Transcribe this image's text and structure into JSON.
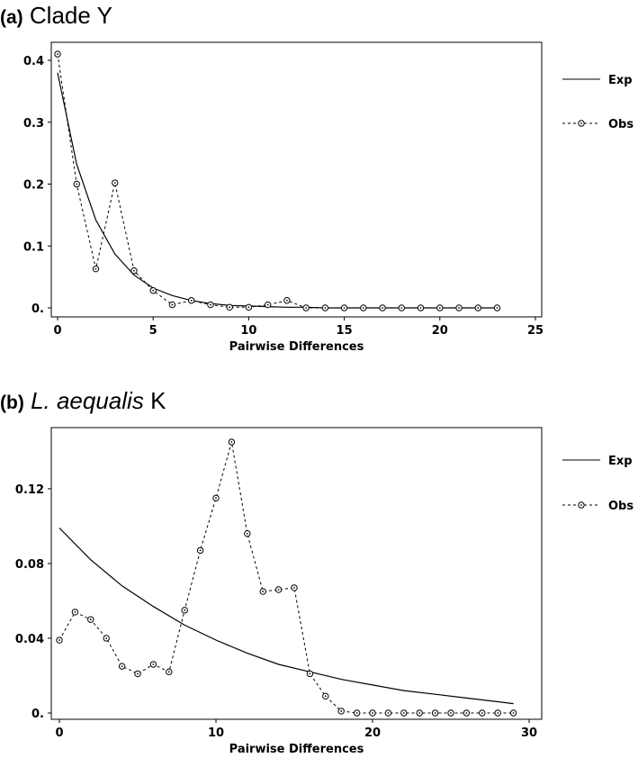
{
  "chart_data": [
    {
      "type": "line",
      "title_letter": "(a)",
      "title_name": "Clade Y",
      "xlabel": "Pairwise Differences",
      "ylabel": "",
      "xlim": [
        0,
        25
      ],
      "ylim": [
        0,
        0.4
      ],
      "xticks": [
        0,
        5,
        10,
        15,
        20,
        25
      ],
      "xtick_labels": [
        "0",
        "5",
        "10",
        "15",
        "20",
        "25"
      ],
      "yticks": [
        0,
        0.1,
        0.2,
        0.3,
        0.4
      ],
      "ytick_labels": [
        "0.",
        "0.1",
        "0.2",
        "0.3",
        "0.4"
      ],
      "legend_position": "right",
      "series": [
        {
          "name": "Exp",
          "style": "solid",
          "x": [
            0,
            1,
            2,
            3,
            4,
            5,
            6,
            7,
            8,
            9,
            10,
            11,
            12,
            13,
            14,
            15,
            16,
            17,
            18,
            19,
            20,
            21,
            22,
            23
          ],
          "y": [
            0.38,
            0.232,
            0.142,
            0.087,
            0.053,
            0.032,
            0.02,
            0.012,
            0.007,
            0.004,
            0.003,
            0.002,
            0.001,
            0.001,
            0,
            0,
            0,
            0,
            0,
            0,
            0,
            0,
            0,
            0
          ]
        },
        {
          "name": "Obs",
          "style": "dashed-circles",
          "x": [
            0,
            1,
            2,
            3,
            4,
            5,
            6,
            7,
            8,
            9,
            10,
            11,
            12,
            13,
            14,
            15,
            16,
            17,
            18,
            19,
            20,
            21,
            22,
            23
          ],
          "y": [
            0.41,
            0.2,
            0.063,
            0.202,
            0.06,
            0.028,
            0.005,
            0.012,
            0.005,
            0.001,
            0.001,
            0.005,
            0.012,
            0,
            0,
            0,
            0,
            0,
            0,
            0,
            0,
            0,
            0,
            0
          ]
        }
      ]
    },
    {
      "type": "line",
      "title_letter": "(b)",
      "title_name": "L. aequalis",
      "title_suffix": "K",
      "xlabel": "Pairwise Differences",
      "ylabel": "",
      "xlim": [
        0,
        30
      ],
      "ylim": [
        0,
        0.145
      ],
      "xticks": [
        0,
        10,
        20,
        30
      ],
      "xtick_labels": [
        "0",
        "10",
        "20",
        "30"
      ],
      "yticks": [
        0,
        0.04,
        0.08,
        0.12
      ],
      "ytick_labels": [
        "0.",
        "0.04",
        "0.08",
        "0.12"
      ],
      "legend_position": "right",
      "series": [
        {
          "name": "Exp",
          "style": "solid",
          "x": [
            0,
            2,
            4,
            6,
            8,
            10,
            12,
            14,
            16,
            18,
            20,
            22,
            24,
            26,
            28,
            29
          ],
          "y": [
            0.099,
            0.082,
            0.068,
            0.057,
            0.047,
            0.039,
            0.032,
            0.026,
            0.022,
            0.018,
            0.015,
            0.012,
            0.01,
            0.008,
            0.006,
            0.005
          ]
        },
        {
          "name": "Obs",
          "style": "dashed-circles",
          "x": [
            0,
            1,
            2,
            3,
            4,
            5,
            6,
            7,
            8,
            9,
            10,
            11,
            12,
            13,
            14,
            15,
            16,
            17,
            18,
            19,
            20,
            21,
            22,
            23,
            24,
            25,
            26,
            27,
            28,
            29
          ],
          "y": [
            0.039,
            0.054,
            0.05,
            0.04,
            0.025,
            0.021,
            0.026,
            0.022,
            0.055,
            0.087,
            0.115,
            0.145,
            0.096,
            0.065,
            0.066,
            0.067,
            0.021,
            0.009,
            0.001,
            0,
            0,
            0,
            0,
            0,
            0,
            0,
            0,
            0,
            0,
            0
          ]
        }
      ]
    }
  ]
}
